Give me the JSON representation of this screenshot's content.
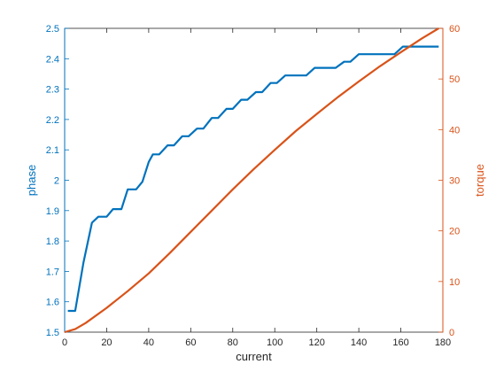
{
  "chart_data": {
    "type": "line",
    "xlabel": "current",
    "xlim": [
      0,
      180
    ],
    "xticks": [
      "0",
      "20",
      "40",
      "60",
      "80",
      "100",
      "120",
      "140",
      "160",
      "180"
    ],
    "y_left": {
      "label": "phase",
      "lim": [
        1.5,
        2.5
      ],
      "ticks": [
        "1.5",
        "1.6",
        "1.7",
        "1.8",
        "1.9",
        "2",
        "2.1",
        "2.2",
        "2.3",
        "2.4",
        "2.5"
      ],
      "color": "#0072BD"
    },
    "y_right": {
      "label": "torque",
      "lim": [
        0,
        60
      ],
      "ticks": [
        "0",
        "10",
        "20",
        "30",
        "40",
        "50",
        "60"
      ],
      "color": "#D95319"
    },
    "grid": false,
    "series": [
      {
        "axis": "left",
        "color": "#0072BD",
        "x": [
          1.5,
          5,
          9,
          13,
          16,
          20,
          23,
          27,
          30,
          34,
          37,
          40,
          42,
          45,
          49,
          52,
          56,
          59,
          63,
          66,
          70,
          73,
          77,
          80,
          84,
          87,
          91,
          94,
          98,
          101,
          105,
          108,
          112,
          115,
          119,
          122,
          126,
          129,
          133,
          136,
          140,
          143,
          147,
          150,
          154,
          157,
          161,
          164,
          168,
          171,
          175,
          178
        ],
        "y": [
          1.57,
          1.57,
          1.73,
          1.86,
          1.88,
          1.88,
          1.905,
          1.905,
          1.97,
          1.97,
          1.995,
          2.06,
          2.085,
          2.085,
          2.115,
          2.115,
          2.145,
          2.145,
          2.17,
          2.17,
          2.205,
          2.205,
          2.235,
          2.235,
          2.265,
          2.265,
          2.29,
          2.29,
          2.32,
          2.32,
          2.345,
          2.345,
          2.345,
          2.345,
          2.37,
          2.37,
          2.37,
          2.37,
          2.39,
          2.39,
          2.415,
          2.415,
          2.415,
          2.415,
          2.415,
          2.415,
          2.44,
          2.44,
          2.44,
          2.44,
          2.44,
          2.44
        ]
      },
      {
        "axis": "right",
        "color": "#D95319",
        "x": [
          0,
          5,
          10,
          20,
          30,
          40,
          50,
          60,
          70,
          80,
          90,
          100,
          110,
          120,
          130,
          140,
          150,
          160,
          170,
          178
        ],
        "y": [
          0,
          0.6,
          1.8,
          4.8,
          8.1,
          11.6,
          15.6,
          19.8,
          24.0,
          28.2,
          32.2,
          36.0,
          39.7,
          43.1,
          46.4,
          49.5,
          52.5,
          55.3,
          58.0,
          60.0
        ]
      }
    ]
  }
}
